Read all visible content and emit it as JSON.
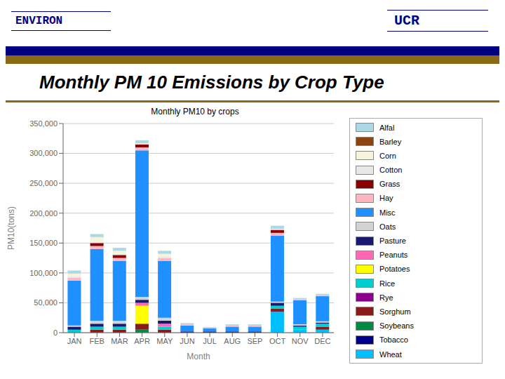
{
  "chart_data": {
    "type": "bar",
    "stacked": true,
    "grid": true,
    "title": "Monthly PM 10 Emissions by Crop Type",
    "subtitle": "Monthly PM10 by crops",
    "annotations": [
      "ENVIRON",
      "UCR"
    ],
    "x_label": "Month",
    "y_label": "PM10(tons)",
    "categories": [
      "JAN",
      "FEB",
      "MAR",
      "APR",
      "MAY",
      "JUN",
      "JUL",
      "AUG",
      "SEP",
      "OCT",
      "NOV",
      "DEC"
    ],
    "ylim": [
      0,
      350000
    ],
    "yticks": [
      0,
      {
        "value": 50000,
        "label": "50,000"
      },
      {
        "value": 100000,
        "label": "100,000"
      },
      {
        "value": 150000,
        "label": "150,000"
      },
      {
        "value": 200000,
        "label": "200,000"
      },
      {
        "value": 250000,
        "label": "250,000"
      },
      {
        "value": 300000,
        "label": "300,000"
      },
      {
        "value": 350000,
        "label": "350,000"
      }
    ],
    "series": [
      {
        "name": "Wheat",
        "color": "#00BFFF",
        "values": [
          0,
          0,
          0,
          0,
          0,
          0,
          0,
          0,
          0,
          35000,
          5000,
          5000
        ]
      },
      {
        "name": "Tobacco",
        "color": "#00008B",
        "values": [
          0,
          0,
          0,
          0,
          0,
          0,
          0,
          0,
          0,
          0,
          0,
          0
        ]
      },
      {
        "name": "Soybeans",
        "color": "#008B45",
        "values": [
          0,
          0,
          0,
          5000,
          0,
          0,
          0,
          0,
          0,
          0,
          0,
          0
        ]
      },
      {
        "name": "Sorghum",
        "color": "#8B1A1A",
        "values": [
          0,
          5000,
          5000,
          10000,
          5000,
          0,
          0,
          0,
          0,
          5000,
          0,
          5000
        ]
      },
      {
        "name": "Rye",
        "color": "#8B008B",
        "values": [
          0,
          0,
          0,
          0,
          0,
          0,
          0,
          0,
          0,
          0,
          0,
          0
        ]
      },
      {
        "name": "Rice",
        "color": "#00CED1",
        "values": [
          5000,
          5000,
          5000,
          0,
          5000,
          0,
          0,
          0,
          0,
          5000,
          5000,
          5000
        ]
      },
      {
        "name": "Potatoes",
        "color": "#FFFF00",
        "values": [
          0,
          0,
          0,
          30000,
          0,
          0,
          0,
          0,
          0,
          0,
          0,
          0
        ]
      },
      {
        "name": "Peanuts",
        "color": "#FF69B4",
        "values": [
          0,
          0,
          0,
          5000,
          5000,
          0,
          0,
          0,
          0,
          0,
          0,
          0
        ]
      },
      {
        "name": "Pasture",
        "color": "#191970",
        "values": [
          5000,
          5000,
          5000,
          5000,
          5000,
          2000,
          2000,
          2000,
          2000,
          5000,
          2000,
          2000
        ]
      },
      {
        "name": "Oats",
        "color": "#D3D3D3",
        "values": [
          2000,
          5000,
          5000,
          5000,
          5000,
          0,
          0,
          0,
          0,
          2000,
          2000,
          2000
        ]
      },
      {
        "name": "Misc",
        "color": "#1E90FF",
        "values": [
          75000,
          120000,
          100000,
          245000,
          95000,
          10000,
          5000,
          8000,
          8000,
          110000,
          40000,
          42000
        ]
      },
      {
        "name": "Hay",
        "color": "#FFB6C1",
        "values": [
          5000,
          5000,
          5000,
          5000,
          5000,
          2000,
          2000,
          2000,
          2000,
          5000,
          2000,
          2000
        ]
      },
      {
        "name": "Grass",
        "color": "#8B0000",
        "values": [
          0,
          5000,
          5000,
          5000,
          0,
          0,
          0,
          0,
          0,
          5000,
          0,
          0
        ]
      },
      {
        "name": "Cotton",
        "color": "#E8E8E8",
        "values": [
          2000,
          2000,
          2000,
          2000,
          2000,
          0,
          0,
          0,
          0,
          2000,
          0,
          0
        ]
      },
      {
        "name": "Corn",
        "color": "#F5F5DC",
        "values": [
          5000,
          8000,
          5000,
          0,
          5000,
          0,
          0,
          0,
          0,
          0,
          0,
          0
        ]
      },
      {
        "name": "Barley",
        "color": "#8B4513",
        "values": [
          0,
          0,
          0,
          0,
          0,
          0,
          0,
          0,
          0,
          0,
          0,
          0
        ]
      },
      {
        "name": "Alfal",
        "color": "#ADD8E6",
        "values": [
          5000,
          5000,
          5000,
          5000,
          5000,
          2000,
          500,
          2000,
          2000,
          5000,
          2000,
          2000
        ]
      }
    ]
  }
}
